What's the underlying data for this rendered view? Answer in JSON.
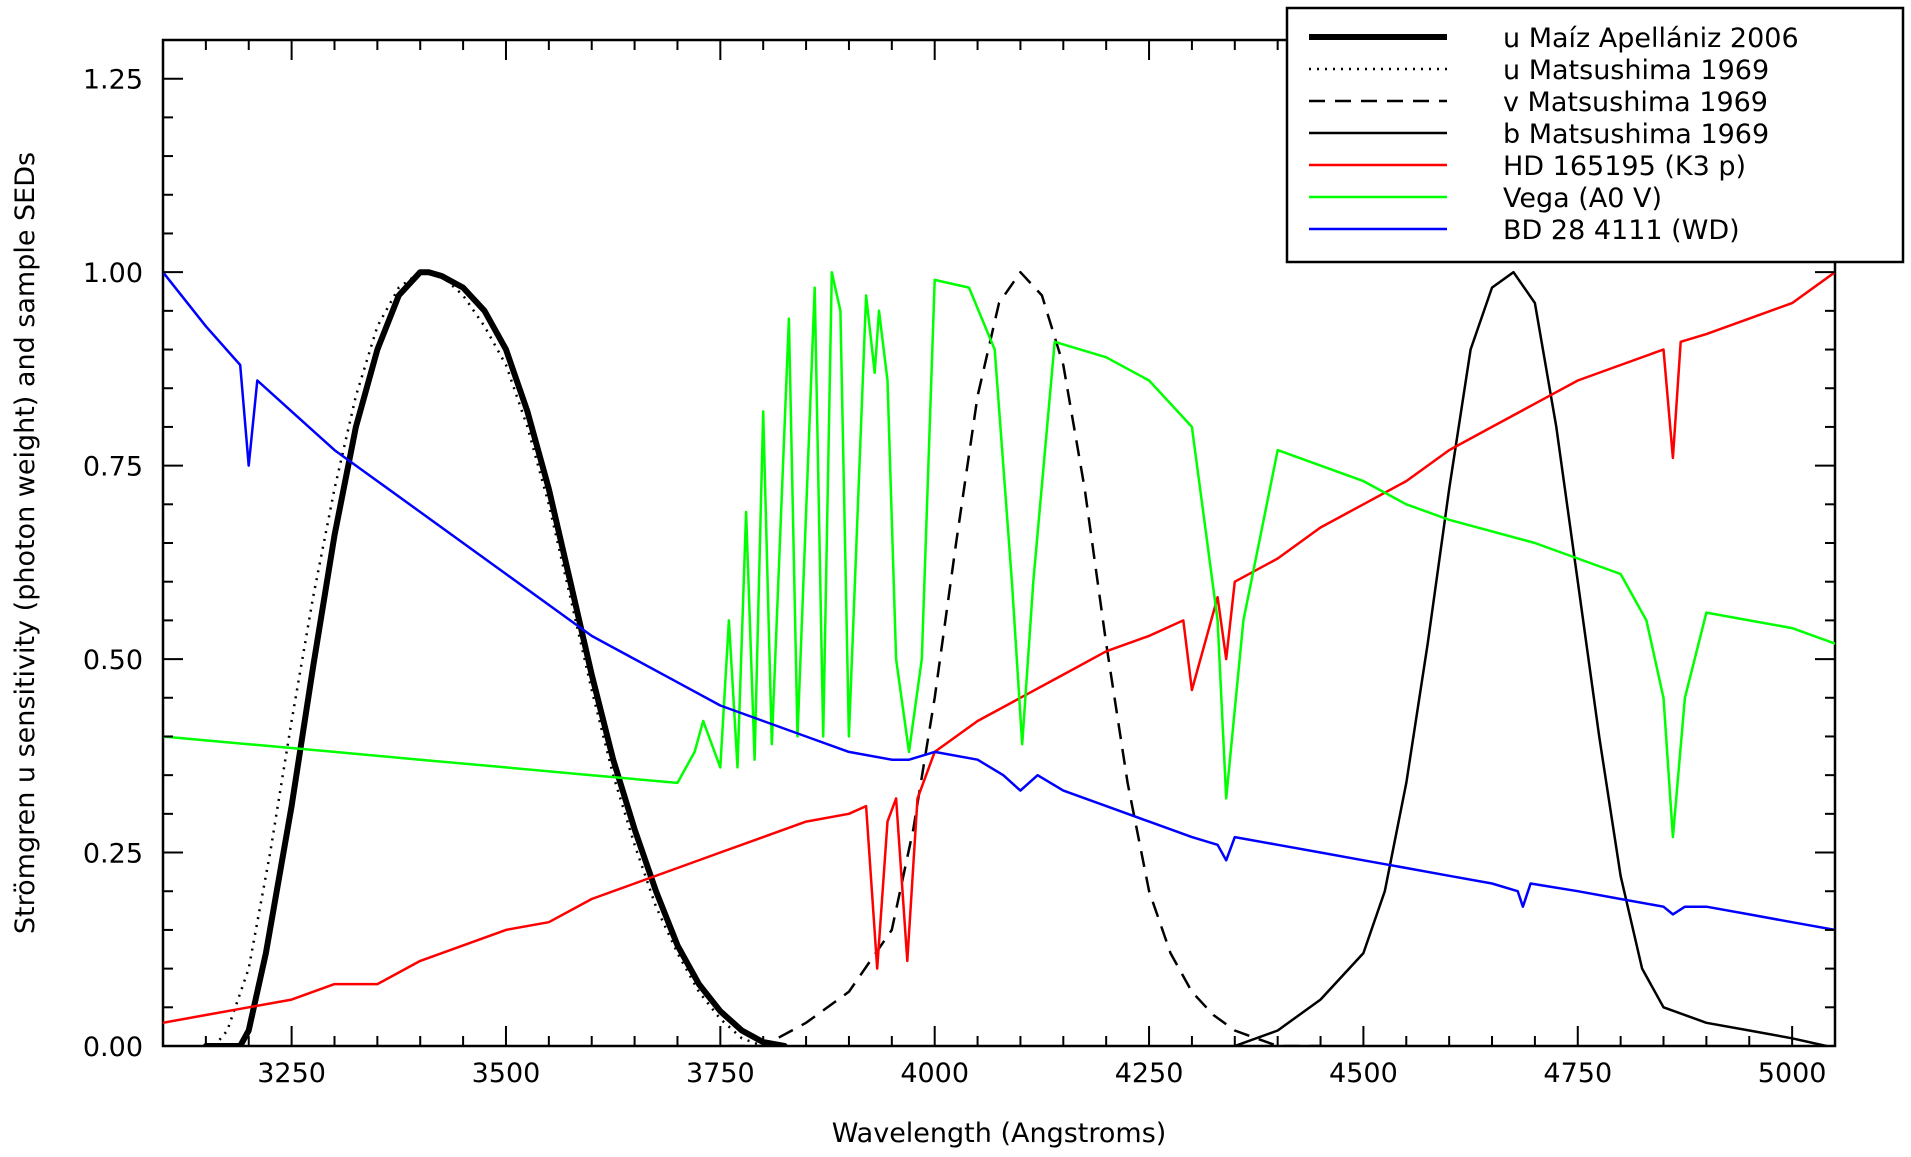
{
  "chart_data": {
    "type": "line",
    "xlabel": "Wavelength (Angstroms)",
    "ylabel": "Strömgren u sensitivity (photon weight) and sample SEDs",
    "xlim": [
      3100,
      5050
    ],
    "ylim": [
      0,
      1.3
    ],
    "grid": false,
    "legend_position": "top-right",
    "x_ticks": [
      3250,
      3500,
      3750,
      4000,
      4250,
      4500,
      4750,
      5000
    ],
    "x_tick_labels": [
      "3250",
      "3500",
      "3750",
      "4000",
      "4250",
      "4500",
      "4750",
      "5000"
    ],
    "y_ticks": [
      0,
      0.25,
      0.5,
      0.75,
      1.0,
      1.25
    ],
    "y_tick_labels": [
      "0.00",
      "0.25",
      "0.50",
      "0.75",
      "1.00",
      "1.25"
    ],
    "series": [
      {
        "name": "u Maíz Apellániz 2006",
        "color": "#000000",
        "style": "thick",
        "x": [
          3150,
          3190,
          3200,
          3220,
          3250,
          3275,
          3300,
          3325,
          3350,
          3375,
          3400,
          3410,
          3425,
          3450,
          3475,
          3500,
          3525,
          3550,
          3575,
          3600,
          3625,
          3650,
          3675,
          3700,
          3725,
          3750,
          3775,
          3800,
          3825
        ],
        "y": [
          0,
          0.0,
          0.02,
          0.12,
          0.31,
          0.49,
          0.66,
          0.8,
          0.9,
          0.97,
          1.0,
          1.0,
          0.995,
          0.98,
          0.95,
          0.9,
          0.82,
          0.72,
          0.6,
          0.48,
          0.37,
          0.28,
          0.2,
          0.13,
          0.08,
          0.045,
          0.02,
          0.005,
          0
        ]
      },
      {
        "name": "u Matsushima 1969",
        "color": "#000000",
        "style": "dotted",
        "x": [
          3160,
          3175,
          3200,
          3225,
          3250,
          3275,
          3300,
          3325,
          3350,
          3375,
          3400,
          3425,
          3450,
          3475,
          3500,
          3525,
          3550,
          3575,
          3600,
          3625,
          3650,
          3675,
          3700,
          3725,
          3750,
          3775,
          3800
        ],
        "y": [
          0,
          0.02,
          0.1,
          0.25,
          0.42,
          0.58,
          0.72,
          0.84,
          0.93,
          0.98,
          1.0,
          0.995,
          0.97,
          0.93,
          0.88,
          0.8,
          0.7,
          0.58,
          0.46,
          0.35,
          0.26,
          0.18,
          0.12,
          0.07,
          0.035,
          0.01,
          0
        ]
      },
      {
        "name": "v Matsushima 1969",
        "color": "#000000",
        "style": "dashed",
        "x": [
          3760,
          3800,
          3850,
          3900,
          3950,
          3975,
          4000,
          4025,
          4050,
          4075,
          4100,
          4125,
          4150,
          4175,
          4200,
          4225,
          4250,
          4275,
          4300,
          4325,
          4350,
          4375,
          4400,
          4450
        ],
        "y": [
          0,
          0.0,
          0.03,
          0.07,
          0.15,
          0.28,
          0.45,
          0.65,
          0.84,
          0.96,
          1.0,
          0.97,
          0.88,
          0.72,
          0.52,
          0.34,
          0.2,
          0.12,
          0.07,
          0.04,
          0.02,
          0.01,
          0.0,
          0
        ]
      },
      {
        "name": "b Matsushima 1969",
        "color": "#000000",
        "style": "solid",
        "x": [
          4350,
          4400,
          4450,
          4500,
          4525,
          4550,
          4575,
          4600,
          4625,
          4650,
          4675,
          4700,
          4725,
          4750,
          4775,
          4800,
          4825,
          4850,
          4900,
          4950,
          5000,
          5040
        ],
        "y": [
          0,
          0.02,
          0.06,
          0.12,
          0.2,
          0.34,
          0.52,
          0.72,
          0.9,
          0.98,
          1.0,
          0.96,
          0.8,
          0.6,
          0.4,
          0.22,
          0.1,
          0.05,
          0.03,
          0.02,
          0.01,
          0
        ]
      },
      {
        "name": "HD 165195 (K3 p)",
        "color": "#ff0000",
        "style": "solid",
        "x": [
          3100,
          3150,
          3200,
          3250,
          3300,
          3350,
          3400,
          3450,
          3500,
          3550,
          3600,
          3650,
          3700,
          3750,
          3800,
          3850,
          3900,
          3920,
          3933,
          3945,
          3955,
          3968,
          3980,
          4000,
          4050,
          4100,
          4150,
          4200,
          4250,
          4290,
          4300,
          4330,
          4340,
          4350,
          4400,
          4450,
          4500,
          4550,
          4600,
          4650,
          4700,
          4750,
          4800,
          4850,
          4861,
          4870,
          4900,
          4950,
          5000,
          5050
        ],
        "y": [
          0.03,
          0.04,
          0.05,
          0.06,
          0.08,
          0.08,
          0.11,
          0.13,
          0.15,
          0.16,
          0.19,
          0.21,
          0.23,
          0.25,
          0.27,
          0.29,
          0.3,
          0.31,
          0.1,
          0.29,
          0.32,
          0.11,
          0.32,
          0.38,
          0.42,
          0.45,
          0.48,
          0.51,
          0.53,
          0.55,
          0.46,
          0.58,
          0.5,
          0.6,
          0.63,
          0.67,
          0.7,
          0.73,
          0.77,
          0.8,
          0.83,
          0.86,
          0.88,
          0.9,
          0.76,
          0.91,
          0.92,
          0.94,
          0.96,
          1.0
        ]
      },
      {
        "name": "Vega (A0 V)",
        "color": "#00ff00",
        "style": "solid",
        "x": [
          3100,
          3200,
          3300,
          3400,
          3500,
          3600,
          3700,
          3720,
          3730,
          3750,
          3760,
          3770,
          3780,
          3790,
          3800,
          3810,
          3830,
          3840,
          3860,
          3870,
          3880,
          3890,
          3900,
          3920,
          3930,
          3935,
          3945,
          3955,
          3970,
          3985,
          4000,
          4040,
          4070,
          4090,
          4102,
          4115,
          4140,
          4200,
          4250,
          4300,
          4330,
          4340,
          4360,
          4400,
          4450,
          4500,
          4550,
          4600,
          4700,
          4800,
          4830,
          4850,
          4861,
          4875,
          4900,
          4950,
          5000,
          5050
        ],
        "y": [
          0.4,
          0.39,
          0.38,
          0.37,
          0.36,
          0.35,
          0.34,
          0.38,
          0.42,
          0.36,
          0.55,
          0.36,
          0.69,
          0.37,
          0.82,
          0.39,
          0.94,
          0.4,
          0.98,
          0.4,
          1.0,
          0.95,
          0.4,
          0.97,
          0.87,
          0.95,
          0.86,
          0.5,
          0.38,
          0.5,
          0.99,
          0.98,
          0.9,
          0.6,
          0.39,
          0.6,
          0.91,
          0.89,
          0.86,
          0.8,
          0.55,
          0.32,
          0.55,
          0.77,
          0.75,
          0.73,
          0.7,
          0.68,
          0.65,
          0.61,
          0.55,
          0.45,
          0.27,
          0.45,
          0.56,
          0.55,
          0.54,
          0.52
        ]
      },
      {
        "name": "BD 28 4111 (WD)",
        "color": "#0000ff",
        "style": "solid",
        "x": [
          3100,
          3150,
          3190,
          3200,
          3210,
          3250,
          3300,
          3350,
          3400,
          3450,
          3500,
          3550,
          3600,
          3650,
          3700,
          3750,
          3800,
          3850,
          3900,
          3950,
          3970,
          4000,
          4050,
          4080,
          4100,
          4120,
          4150,
          4200,
          4250,
          4300,
          4330,
          4340,
          4350,
          4400,
          4450,
          4500,
          4550,
          4600,
          4650,
          4680,
          4686,
          4695,
          4750,
          4800,
          4850,
          4861,
          4875,
          4900,
          4950,
          5000,
          5050
        ],
        "y": [
          1.0,
          0.93,
          0.88,
          0.75,
          0.86,
          0.82,
          0.77,
          0.73,
          0.69,
          0.65,
          0.61,
          0.57,
          0.53,
          0.5,
          0.47,
          0.44,
          0.42,
          0.4,
          0.38,
          0.37,
          0.37,
          0.38,
          0.37,
          0.35,
          0.33,
          0.35,
          0.33,
          0.31,
          0.29,
          0.27,
          0.26,
          0.24,
          0.27,
          0.26,
          0.25,
          0.24,
          0.23,
          0.22,
          0.21,
          0.2,
          0.18,
          0.21,
          0.2,
          0.19,
          0.18,
          0.17,
          0.18,
          0.18,
          0.17,
          0.16,
          0.15
        ]
      }
    ]
  }
}
